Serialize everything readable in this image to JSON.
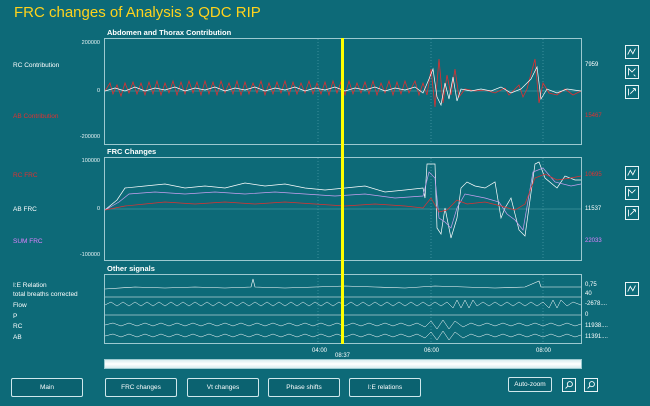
{
  "window": {
    "title": "FRC changes of Analysis 3 QDC RIP"
  },
  "panels": {
    "p1": {
      "title": "Abdomen and Thorax Contribution",
      "ticks": [
        "200000",
        "0",
        "-200000"
      ],
      "left_labels": [
        "RC Contribution",
        "AB Contribution"
      ],
      "right_values": [
        "7959",
        "15467"
      ]
    },
    "p2": {
      "title": "FRC Changes",
      "ticks": [
        "100000",
        "0",
        "-100000"
      ],
      "left_labels": [
        "RC FRC",
        "AB FRC",
        "SUM FRC"
      ],
      "right_values": [
        "10695",
        "11537",
        "22033"
      ]
    },
    "p3": {
      "title": "Other signals",
      "left_labels": [
        "I:E Relation",
        "total breaths corrected",
        "Flow",
        "P",
        "RC",
        "AB"
      ],
      "right_values": [
        "0,75",
        "40",
        "-2678....",
        "0",
        "11938....",
        "11391...."
      ]
    }
  },
  "time_axis": {
    "ticks": [
      "04:00",
      "06:00",
      "08:00"
    ],
    "cursor_time": "08:37"
  },
  "buttons": {
    "main": "Main",
    "frc": "FRC changes",
    "vt": "Vt changes",
    "phase": "Phase shifts",
    "ie": "I:E relations",
    "autozoom": "Auto-zoom"
  },
  "colors": {
    "background": "#0d6a78",
    "title": "#ffd21c",
    "rc": "#e03030",
    "ab": "#ffffff",
    "sum": "#e080ff",
    "cursor": "#ffff00"
  },
  "icons": [
    "chart-zoom-icon",
    "chart-arrow-up-icon",
    "chart-arrow-down-icon",
    "zoom-in-icon",
    "zoom-out-icon"
  ]
}
